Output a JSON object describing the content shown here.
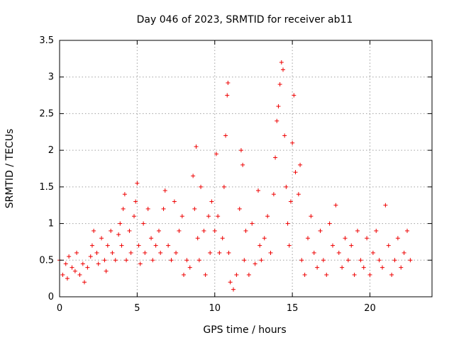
{
  "chart_data": {
    "type": "scatter",
    "title": "Day 046 of 2023, SRMTID for receiver ab11",
    "xlabel": "GPS time / hours",
    "ylabel": "SRMTID / TECUs",
    "xlim": [
      0,
      24
    ],
    "ylim": [
      0,
      3.5
    ],
    "xticks": [
      0,
      5,
      10,
      15,
      20
    ],
    "xtick_labels": [
      "0",
      "5",
      "10",
      "15",
      "20"
    ],
    "yticks": [
      0,
      0.5,
      1,
      1.5,
      2,
      2.5,
      3,
      3.5
    ],
    "ytick_labels": [
      "0",
      "0.5",
      "1",
      "1.5",
      "2",
      "2.5",
      "3",
      "3.5"
    ],
    "grid": true,
    "marker": "plus",
    "series": [
      {
        "name": "SRMTID",
        "color": "#ee0000",
        "points": [
          [
            0.0,
            0.5
          ],
          [
            0.2,
            0.3
          ],
          [
            0.4,
            0.45
          ],
          [
            0.5,
            0.25
          ],
          [
            0.6,
            0.55
          ],
          [
            0.8,
            0.4
          ],
          [
            1.0,
            0.35
          ],
          [
            1.1,
            0.6
          ],
          [
            1.3,
            0.3
          ],
          [
            1.5,
            0.45
          ],
          [
            1.6,
            0.2
          ],
          [
            1.8,
            0.4
          ],
          [
            2.0,
            0.55
          ],
          [
            2.1,
            0.7
          ],
          [
            2.2,
            0.9
          ],
          [
            2.4,
            0.6
          ],
          [
            2.5,
            0.45
          ],
          [
            2.7,
            0.8
          ],
          [
            2.9,
            0.5
          ],
          [
            3.0,
            0.35
          ],
          [
            3.1,
            0.7
          ],
          [
            3.3,
            0.9
          ],
          [
            3.4,
            0.6
          ],
          [
            3.6,
            0.5
          ],
          [
            3.8,
            0.85
          ],
          [
            3.9,
            1.0
          ],
          [
            4.0,
            0.7
          ],
          [
            4.1,
            1.2
          ],
          [
            4.2,
            1.4
          ],
          [
            4.3,
            0.5
          ],
          [
            4.5,
            0.9
          ],
          [
            4.6,
            0.6
          ],
          [
            4.8,
            1.1
          ],
          [
            4.9,
            1.3
          ],
          [
            5.0,
            1.55
          ],
          [
            5.1,
            0.7
          ],
          [
            5.2,
            0.45
          ],
          [
            5.4,
            1.0
          ],
          [
            5.5,
            0.6
          ],
          [
            5.7,
            1.2
          ],
          [
            5.9,
            0.8
          ],
          [
            6.0,
            0.5
          ],
          [
            6.2,
            0.7
          ],
          [
            6.4,
            0.9
          ],
          [
            6.5,
            0.6
          ],
          [
            6.7,
            1.2
          ],
          [
            6.8,
            1.45
          ],
          [
            7.0,
            0.7
          ],
          [
            7.2,
            0.5
          ],
          [
            7.4,
            1.3
          ],
          [
            7.5,
            0.6
          ],
          [
            7.7,
            0.9
          ],
          [
            7.9,
            1.1
          ],
          [
            8.0,
            0.3
          ],
          [
            8.2,
            0.5
          ],
          [
            8.4,
            0.4
          ],
          [
            8.6,
            1.65
          ],
          [
            8.7,
            1.2
          ],
          [
            8.8,
            2.05
          ],
          [
            8.9,
            0.8
          ],
          [
            9.0,
            0.5
          ],
          [
            9.1,
            1.5
          ],
          [
            9.3,
            0.9
          ],
          [
            9.4,
            0.3
          ],
          [
            9.6,
            1.1
          ],
          [
            9.7,
            0.6
          ],
          [
            9.8,
            1.3
          ],
          [
            10.0,
            0.9
          ],
          [
            10.1,
            1.95
          ],
          [
            10.2,
            1.1
          ],
          [
            10.3,
            0.6
          ],
          [
            10.5,
            0.8
          ],
          [
            10.6,
            1.5
          ],
          [
            10.7,
            2.2
          ],
          [
            10.8,
            2.75
          ],
          [
            10.85,
            2.92
          ],
          [
            10.9,
            0.6
          ],
          [
            11.0,
            0.2
          ],
          [
            11.2,
            0.1
          ],
          [
            11.4,
            0.3
          ],
          [
            11.6,
            1.2
          ],
          [
            11.7,
            2.0
          ],
          [
            11.8,
            1.8
          ],
          [
            11.9,
            0.5
          ],
          [
            12.0,
            0.9
          ],
          [
            12.2,
            0.3
          ],
          [
            12.4,
            1.0
          ],
          [
            12.6,
            0.45
          ],
          [
            12.8,
            1.45
          ],
          [
            12.9,
            0.7
          ],
          [
            13.0,
            0.5
          ],
          [
            13.2,
            0.8
          ],
          [
            13.4,
            1.1
          ],
          [
            13.6,
            0.6
          ],
          [
            13.8,
            1.4
          ],
          [
            13.9,
            1.9
          ],
          [
            14.0,
            2.4
          ],
          [
            14.1,
            2.6
          ],
          [
            14.2,
            2.9
          ],
          [
            14.3,
            3.2
          ],
          [
            14.4,
            3.1
          ],
          [
            14.5,
            2.2
          ],
          [
            14.6,
            1.5
          ],
          [
            14.7,
            1.0
          ],
          [
            14.8,
            0.7
          ],
          [
            14.9,
            1.3
          ],
          [
            15.0,
            2.1
          ],
          [
            15.1,
            2.75
          ],
          [
            15.2,
            1.7
          ],
          [
            15.4,
            1.4
          ],
          [
            15.5,
            1.8
          ],
          [
            15.6,
            0.5
          ],
          [
            15.8,
            0.3
          ],
          [
            16.0,
            0.8
          ],
          [
            16.2,
            1.1
          ],
          [
            16.4,
            0.6
          ],
          [
            16.6,
            0.4
          ],
          [
            16.8,
            0.9
          ],
          [
            17.0,
            0.5
          ],
          [
            17.2,
            0.3
          ],
          [
            17.4,
            1.0
          ],
          [
            17.6,
            0.7
          ],
          [
            17.8,
            1.25
          ],
          [
            18.0,
            0.6
          ],
          [
            18.2,
            0.4
          ],
          [
            18.4,
            0.8
          ],
          [
            18.6,
            0.5
          ],
          [
            18.8,
            0.7
          ],
          [
            19.0,
            0.3
          ],
          [
            19.2,
            0.9
          ],
          [
            19.4,
            0.5
          ],
          [
            19.6,
            0.4
          ],
          [
            19.8,
            0.8
          ],
          [
            20.0,
            0.3
          ],
          [
            20.2,
            0.6
          ],
          [
            20.4,
            0.9
          ],
          [
            20.6,
            0.5
          ],
          [
            20.8,
            0.4
          ],
          [
            21.0,
            1.25
          ],
          [
            21.2,
            0.7
          ],
          [
            21.4,
            0.3
          ],
          [
            21.6,
            0.5
          ],
          [
            21.8,
            0.8
          ],
          [
            22.0,
            0.4
          ],
          [
            22.2,
            0.6
          ],
          [
            22.4,
            0.9
          ],
          [
            22.6,
            0.5
          ]
        ]
      }
    ]
  }
}
